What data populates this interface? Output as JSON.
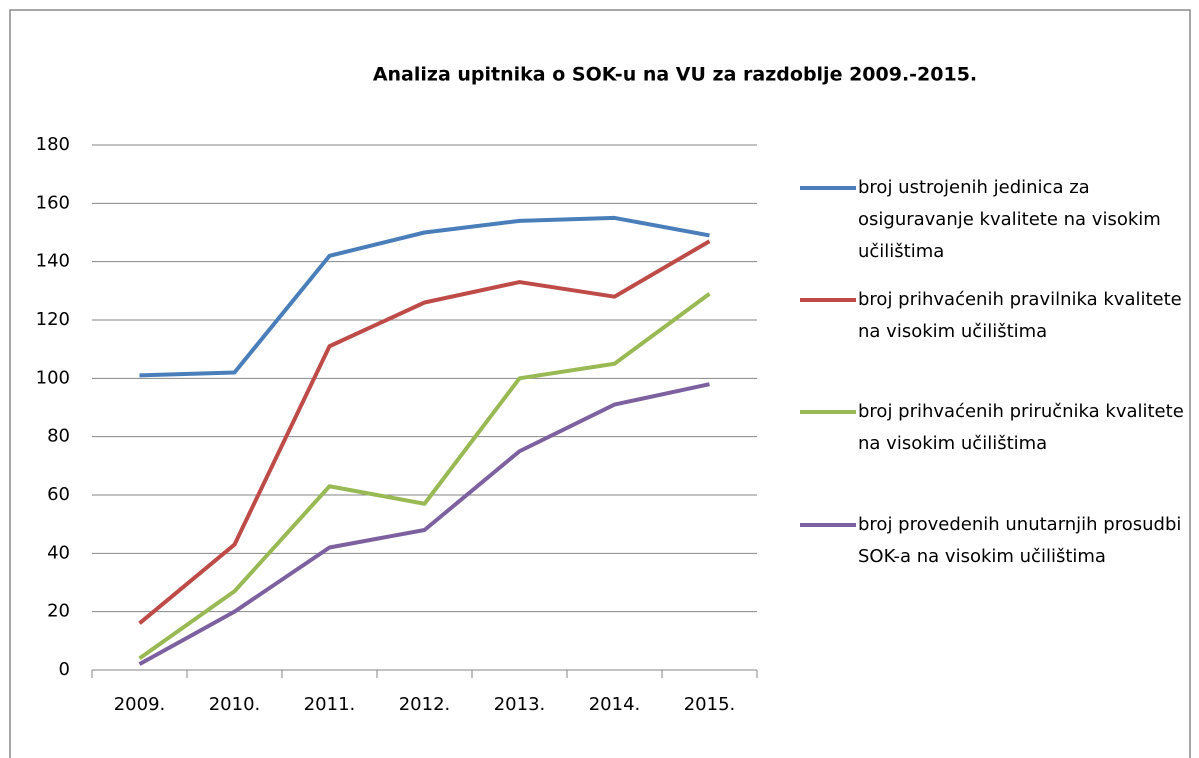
{
  "chart_data": {
    "type": "line",
    "title": "Analiza upitnika o SOK-u na VU za razdoblje 2009.-2015.",
    "categories": [
      "2009.",
      "2010.",
      "2011.",
      "2012.",
      "2013.",
      "2014.",
      "2015."
    ],
    "series": [
      {
        "name": "broj ustrojenih jedinica za osiguravanje kvalitete na visokim učilištima",
        "color": "#4a7ebb",
        "values": [
          101,
          102,
          142,
          150,
          154,
          155,
          149
        ]
      },
      {
        "name": "broj prihvaćenih pravilnika kvalitete na visokim učilištima",
        "color": "#be4b48",
        "values": [
          16,
          43,
          111,
          126,
          133,
          128,
          147
        ]
      },
      {
        "name": "broj prihvaćenih priručnika kvalitete na visokim učilištima",
        "color": "#98b954",
        "values": [
          4,
          27,
          63,
          57,
          100,
          105,
          129
        ]
      },
      {
        "name": "broj provedenih unutarnjih prosudbi SOK-a na visokim učilištima",
        "color": "#7d60a0",
        "values": [
          2,
          20,
          42,
          48,
          75,
          91,
          98
        ]
      }
    ],
    "ylim": [
      0,
      180
    ],
    "yticks": [
      0,
      20,
      40,
      60,
      80,
      100,
      120,
      140,
      160,
      180
    ],
    "grid": true,
    "legend": "right"
  }
}
